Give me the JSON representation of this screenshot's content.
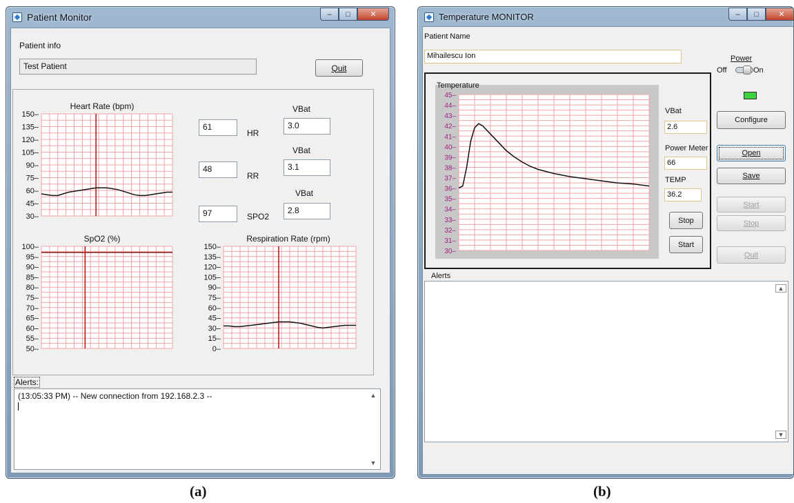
{
  "panel_a": {
    "window_title": "Patient Monitor",
    "patient_info_label": "Patient info",
    "patient_name": "Test Patient",
    "quit_label": "Quit",
    "readings": [
      {
        "value": "61",
        "label": "HR",
        "vbat_label": "VBat",
        "vbat": "3.0"
      },
      {
        "value": "48",
        "label": "RR",
        "vbat_label": "VBat",
        "vbat": "3.1"
      },
      {
        "value": "97",
        "label": "SPO2",
        "vbat_label": "VBat",
        "vbat": "2.8"
      }
    ],
    "alerts_label": "Alerts:",
    "alerts_text": "(13:05:33 PM) -- New connection from 192.168.2.3 --",
    "caption": "(a)"
  },
  "panel_b": {
    "window_title": "Temperature MONITOR",
    "patient_name_label": "Patient Name",
    "patient_name": "Mihailescu Ion",
    "power_label": "Power",
    "off_label": "Off",
    "on_label": "On",
    "led_color": "#3fd13f",
    "buttons": {
      "configure": "Configure",
      "open": "Open",
      "save": "Save",
      "start": "Start",
      "stop": "Stop",
      "quit": "Quit"
    },
    "inner_buttons": {
      "stop": "Stop",
      "start": "Start"
    },
    "vbat_label": "VBat",
    "vbat": "2.6",
    "power_meter_label": "Power Meter",
    "power_meter": "66",
    "temp_label": "TEMP",
    "temp": "36.2",
    "alerts_label": "Alerts",
    "caption": "(b)"
  },
  "chart_data": [
    {
      "type": "line",
      "title": "Heart Rate (bpm)",
      "ylim": [
        30,
        150
      ],
      "yticks": [
        "150",
        "135",
        "120",
        "105",
        "90",
        "75",
        "60",
        "45",
        "30"
      ],
      "x": [
        0,
        1,
        2,
        3,
        4,
        5,
        6,
        7,
        8,
        9,
        10,
        11,
        12,
        13,
        14,
        15,
        16,
        17,
        18,
        19,
        20,
        21,
        22,
        23,
        24
      ],
      "values": [
        56,
        55,
        54,
        54,
        56,
        58,
        59,
        60,
        61,
        62,
        63,
        63,
        63,
        62,
        61,
        59,
        57,
        55,
        54,
        54,
        55,
        56,
        57,
        58,
        58
      ],
      "marker_x": 10,
      "grid_color": "#f2a3a8",
      "line_color": "#111111",
      "marker_color": "#b01010"
    },
    {
      "type": "line",
      "title": "SpO2 (%)",
      "ylim": [
        50,
        100
      ],
      "yticks": [
        "100",
        "95",
        "90",
        "85",
        "80",
        "75",
        "70",
        "65",
        "60",
        "55",
        "50"
      ],
      "x": [
        0,
        24
      ],
      "values": [
        97,
        97
      ],
      "marker_x": 8,
      "grid_color": "#f2a3a8",
      "line_color": "#8b1010",
      "marker_color": "#b01010"
    },
    {
      "type": "line",
      "title": "Respiration Rate (rpm)",
      "ylim": [
        0,
        150
      ],
      "yticks": [
        "150",
        "135",
        "120",
        "105",
        "90",
        "75",
        "60",
        "45",
        "30",
        "15",
        "0"
      ],
      "x": [
        0,
        1,
        2,
        3,
        4,
        5,
        6,
        7,
        8,
        9,
        10,
        11,
        12,
        13,
        14,
        15,
        16,
        17,
        18,
        19,
        20,
        21,
        22,
        23,
        24
      ],
      "values": [
        33,
        33,
        32,
        32,
        33,
        34,
        35,
        36,
        37,
        38,
        39,
        39,
        39,
        38,
        37,
        35,
        33,
        31,
        30,
        31,
        32,
        33,
        34,
        34,
        34
      ],
      "marker_x": 10,
      "grid_color": "#f2a3a8",
      "line_color": "#111111",
      "marker_color": "#b01010"
    },
    {
      "type": "line",
      "title": "Temperature",
      "ylim": [
        30,
        45
      ],
      "yticks": [
        "45",
        "44",
        "43",
        "42",
        "41",
        "40",
        "39",
        "38",
        "37",
        "36",
        "35",
        "34",
        "33",
        "32",
        "31",
        "30"
      ],
      "x": [
        0,
        1,
        2,
        3,
        4,
        5,
        6,
        8,
        10,
        12,
        14,
        16,
        18,
        20,
        24,
        28,
        32,
        36,
        40,
        44,
        48
      ],
      "values": [
        36,
        36.2,
        38,
        40.5,
        41.8,
        42.2,
        42,
        41.2,
        40.4,
        39.6,
        39,
        38.5,
        38.1,
        37.8,
        37.4,
        37.1,
        36.9,
        36.7,
        36.5,
        36.4,
        36.2
      ],
      "grid_color": "#f2a3a8",
      "line_color": "#111111",
      "plot_bg": "#ffffff",
      "frame_bg": "#c8c8c8",
      "tick_color": "#a02080"
    }
  ]
}
